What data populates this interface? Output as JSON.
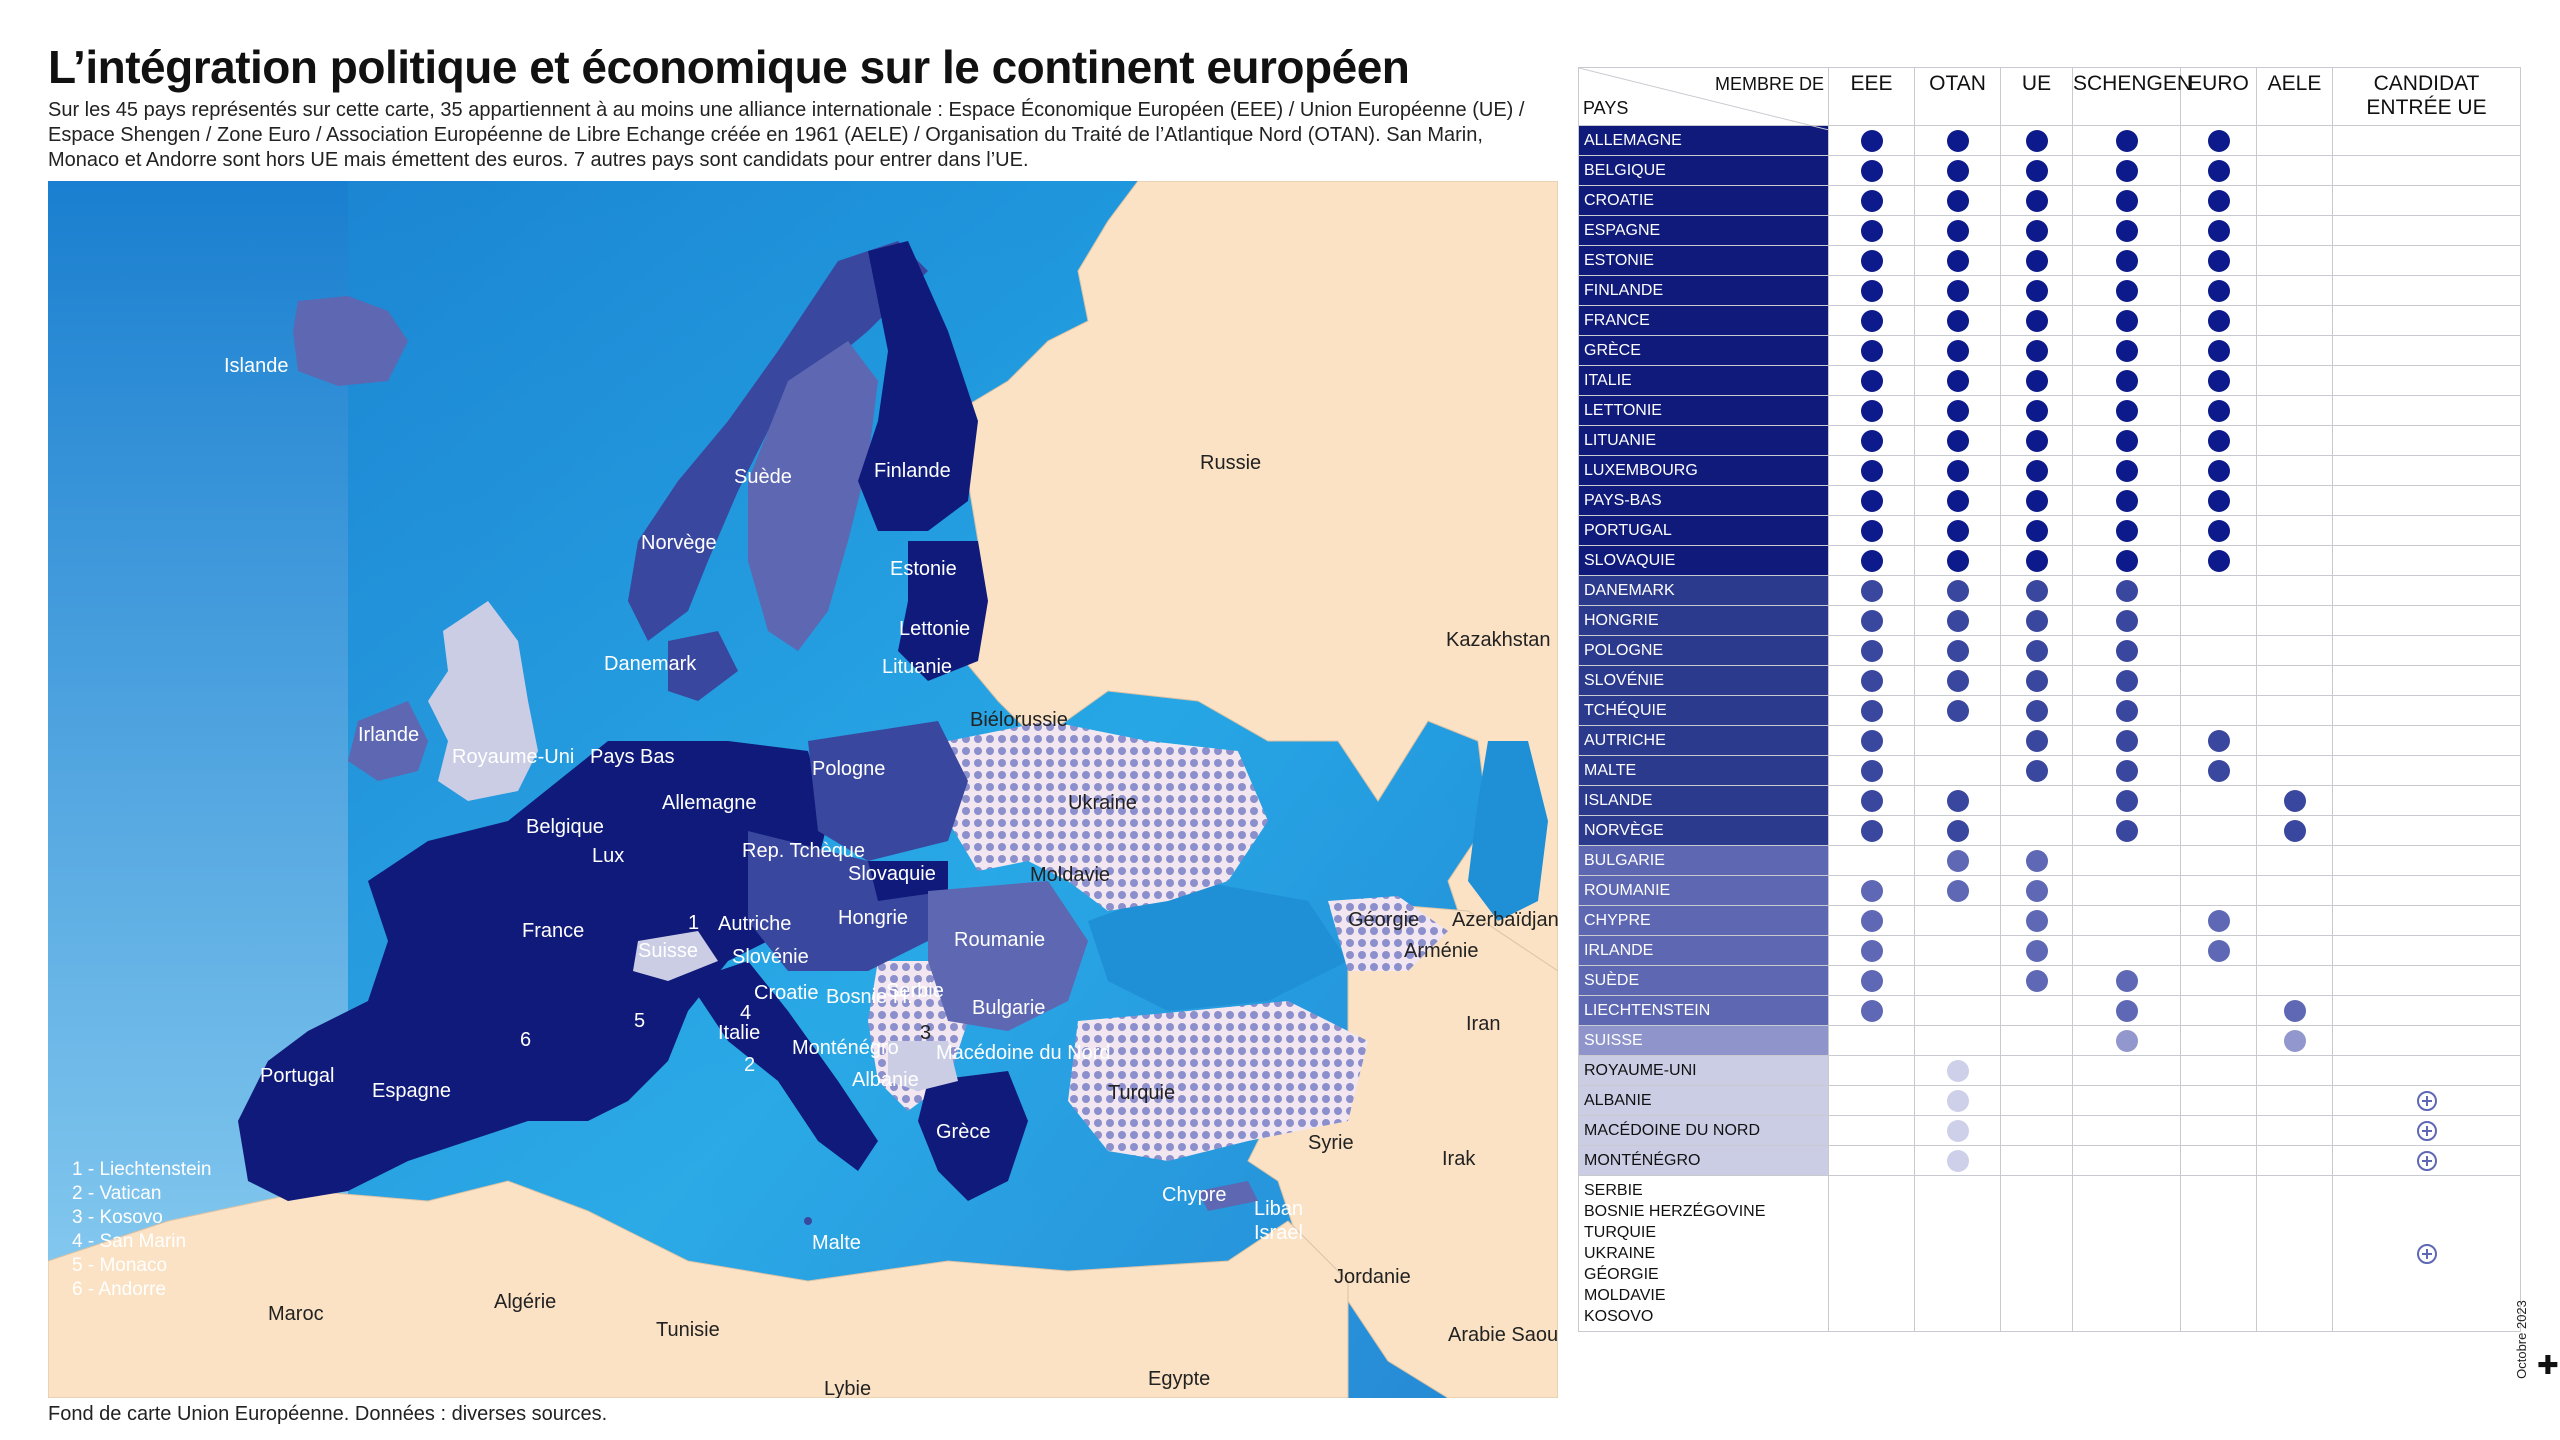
{
  "title": "L’intégration politique et économique sur le continent européen",
  "subtitle": "Sur les 45 pays représentés sur cette carte, 35 appartiennent à au moins une alliance internationale : Espace Économique Européen (EEE) / Union Européenne (UE) / Espace Shengen / Zone Euro / Association Européenne de Libre Echange créée en 1961 (AELE) / Organisation du Traité de l’Atlantique Nord (OTAN). San Marin, Monaco et Andorre sont hors UE mais émettent des euros. 7 autres pays sont candidats pour entrer dans l’UE.",
  "source": "Fond de carte Union Européenne. Données : diverses sources.",
  "date": "Octobre 2023",
  "colors": {
    "group1": "#0f1a7a",
    "group2": "#2c3a8e",
    "group3": "#5d67b2",
    "group4": "#8f95cb",
    "group5": "#cbcde5",
    "sea": "#1f8fd6",
    "land_other": "#fbe2c4"
  },
  "map": {
    "labels": {
      "islande": "Islande",
      "suede": "Suède",
      "norvege": "Norvège",
      "finlande": "Finlande",
      "russie": "Russie",
      "estonie": "Estonie",
      "lettonie": "Lettonie",
      "lituanie": "Lituanie",
      "danemark": "Danemark",
      "irlande": "Irlande",
      "royaume_uni": "Royaume-Uni",
      "pays_bas": "Pays Bas",
      "belgique": "Belgique",
      "lux": "Lux",
      "allemagne": "Allemagne",
      "pologne": "Pologne",
      "bielorussie": "Biélorussie",
      "ukraine": "Ukraine",
      "kazakhstan": "Kazakhstan",
      "rep_tcheque": "Rep. Tchèque",
      "slovaquie": "Slovaquie",
      "moldavie": "Moldavie",
      "france": "France",
      "suisse": "Suisse",
      "autriche": "Autriche",
      "hongrie": "Hongrie",
      "roumanie": "Roumanie",
      "slovenie": "Slovénie",
      "croatie": "Croatie",
      "bosnie": "Bosnie H.",
      "serbie": "Serbie",
      "bulgarie": "Bulgarie",
      "georgie": "Géorgie",
      "armenie": "Arménie",
      "azerbaidjan": "Azerbaïdjan",
      "italie": "Italie",
      "montenegro": "Monténégro",
      "macedoine": "Macédoine du Nord",
      "albanie": "Albanie",
      "grece": "Grèce",
      "turquie": "Turquie",
      "portugal": "Portugal",
      "espagne": "Espagne",
      "iran": "Iran",
      "syrie": "Syrie",
      "irak": "Irak",
      "chypre": "Chypre",
      "liban": "Liban",
      "israel": "Israel",
      "malte": "Malte",
      "jordanie": "Jordanie",
      "maroc": "Maroc",
      "algerie": "Algérie",
      "tunisie": "Tunisie",
      "arabie": "Arabie Saoudite",
      "egypte": "Egypte",
      "lybie": "Lybie",
      "n1": "1",
      "n2": "2",
      "n3": "3",
      "n4": "4",
      "n5": "5",
      "n6": "6"
    },
    "legend": [
      "1 - Liechtenstein",
      "2 - Vatican",
      "3 - Kosovo",
      "4 - San Marin",
      "5 - Monaco",
      "6 - Andorre"
    ]
  },
  "table": {
    "corner_top": "MEMBRE DE",
    "corner_bottom": "PAYS",
    "columns": [
      "EEE",
      "OTAN",
      "UE",
      "SCHENGEN",
      "EURO",
      "AELE",
      "CANDIDAT ENTRÉE UE"
    ],
    "rows": [
      {
        "name": "ALLEMAGNE",
        "group": "g1",
        "m": [
          1,
          1,
          1,
          1,
          1,
          0,
          0
        ]
      },
      {
        "name": "BELGIQUE",
        "group": "g1",
        "m": [
          1,
          1,
          1,
          1,
          1,
          0,
          0
        ]
      },
      {
        "name": "CROATIE",
        "group": "g1",
        "m": [
          1,
          1,
          1,
          1,
          1,
          0,
          0
        ]
      },
      {
        "name": "ESPAGNE",
        "group": "g1",
        "m": [
          1,
          1,
          1,
          1,
          1,
          0,
          0
        ]
      },
      {
        "name": "ESTONIE",
        "group": "g1",
        "m": [
          1,
          1,
          1,
          1,
          1,
          0,
          0
        ]
      },
      {
        "name": "FINLANDE",
        "group": "g1",
        "m": [
          1,
          1,
          1,
          1,
          1,
          0,
          0
        ]
      },
      {
        "name": "FRANCE",
        "group": "g1",
        "m": [
          1,
          1,
          1,
          1,
          1,
          0,
          0
        ]
      },
      {
        "name": "GRÈCE",
        "group": "g1",
        "m": [
          1,
          1,
          1,
          1,
          1,
          0,
          0
        ]
      },
      {
        "name": "ITALIE",
        "group": "g1",
        "m": [
          1,
          1,
          1,
          1,
          1,
          0,
          0
        ]
      },
      {
        "name": "LETTONIE",
        "group": "g1",
        "m": [
          1,
          1,
          1,
          1,
          1,
          0,
          0
        ]
      },
      {
        "name": "LITUANIE",
        "group": "g1",
        "m": [
          1,
          1,
          1,
          1,
          1,
          0,
          0
        ]
      },
      {
        "name": "LUXEMBOURG",
        "group": "g1",
        "m": [
          1,
          1,
          1,
          1,
          1,
          0,
          0
        ]
      },
      {
        "name": "PAYS-BAS",
        "group": "g1",
        "m": [
          1,
          1,
          1,
          1,
          1,
          0,
          0
        ]
      },
      {
        "name": "PORTUGAL",
        "group": "g1",
        "m": [
          1,
          1,
          1,
          1,
          1,
          0,
          0
        ]
      },
      {
        "name": "SLOVAQUIE",
        "group": "g1",
        "m": [
          1,
          1,
          1,
          1,
          1,
          0,
          0
        ]
      },
      {
        "name": "DANEMARK",
        "group": "g2",
        "m": [
          1,
          1,
          1,
          1,
          0,
          0,
          0
        ]
      },
      {
        "name": "HONGRIE",
        "group": "g2",
        "m": [
          1,
          1,
          1,
          1,
          0,
          0,
          0
        ]
      },
      {
        "name": "POLOGNE",
        "group": "g2",
        "m": [
          1,
          1,
          1,
          1,
          0,
          0,
          0
        ]
      },
      {
        "name": "SLOVÉNIE",
        "group": "g2",
        "m": [
          1,
          1,
          1,
          1,
          0,
          0,
          0
        ]
      },
      {
        "name": "TCHÉQUIE",
        "group": "g2",
        "m": [
          1,
          1,
          1,
          1,
          0,
          0,
          0
        ]
      },
      {
        "name": "AUTRICHE",
        "group": "g2",
        "m": [
          1,
          0,
          1,
          1,
          1,
          0,
          0
        ]
      },
      {
        "name": "MALTE",
        "group": "g2",
        "m": [
          1,
          0,
          1,
          1,
          1,
          0,
          0
        ]
      },
      {
        "name": "ISLANDE",
        "group": "g2",
        "m": [
          1,
          1,
          0,
          1,
          0,
          1,
          0
        ]
      },
      {
        "name": "NORVÈGE",
        "group": "g2",
        "m": [
          1,
          1,
          0,
          1,
          0,
          1,
          0
        ]
      },
      {
        "name": "BULGARIE",
        "group": "g3",
        "m": [
          0,
          1,
          1,
          0,
          0,
          0,
          0
        ]
      },
      {
        "name": "ROUMANIE",
        "group": "g3",
        "m": [
          1,
          1,
          1,
          0,
          0,
          0,
          0
        ]
      },
      {
        "name": "CHYPRE",
        "group": "g3",
        "m": [
          1,
          0,
          1,
          0,
          1,
          0,
          0
        ]
      },
      {
        "name": "IRLANDE",
        "group": "g3",
        "m": [
          1,
          0,
          1,
          0,
          1,
          0,
          0
        ]
      },
      {
        "name": "SUÈDE",
        "group": "g3",
        "m": [
          1,
          0,
          1,
          1,
          0,
          0,
          0
        ]
      },
      {
        "name": "LIECHTENSTEIN",
        "group": "g3",
        "m": [
          1,
          0,
          0,
          1,
          0,
          1,
          0
        ]
      },
      {
        "name": "SUISSE",
        "group": "g4",
        "m": [
          0,
          0,
          0,
          1,
          0,
          1,
          0
        ]
      },
      {
        "name": "ROYAUME-UNI",
        "group": "g5",
        "m": [
          0,
          1,
          0,
          0,
          0,
          0,
          0
        ]
      },
      {
        "name": "ALBANIE",
        "group": "g5",
        "m": [
          0,
          1,
          0,
          0,
          0,
          0,
          2
        ]
      },
      {
        "name": "MACÉDOINE DU NORD",
        "group": "g5",
        "m": [
          0,
          1,
          0,
          0,
          0,
          0,
          2
        ]
      },
      {
        "name": "MONTÉNÉGRO",
        "group": "g5",
        "m": [
          0,
          1,
          0,
          0,
          0,
          0,
          2
        ]
      }
    ],
    "candidates": [
      "SERBIE",
      "BOSNIE HERZÉGOVINE",
      "TURQUIE",
      "UKRAINE",
      "GÉORGIE",
      "MOLDAVIE",
      "KOSOVO"
    ]
  }
}
